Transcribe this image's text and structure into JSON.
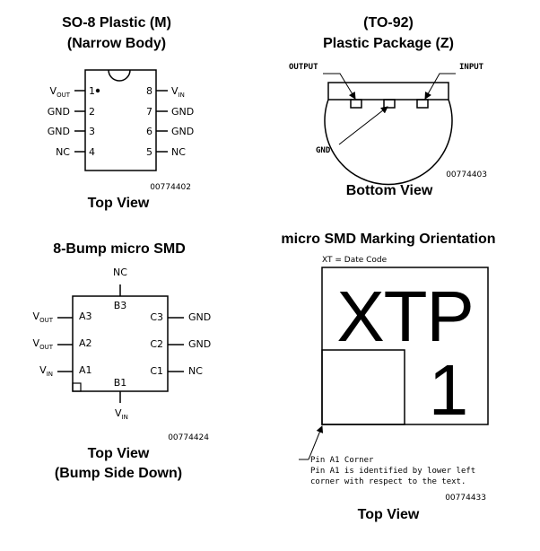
{
  "so8": {
    "title_line1": "SO-8 Plastic (M)",
    "title_line2": "(Narrow Body)",
    "left_pins": [
      {
        "base": "V",
        "sub": "OUT",
        "num": "1"
      },
      {
        "base": "GND",
        "sub": "",
        "num": "2"
      },
      {
        "base": "GND",
        "sub": "",
        "num": "3"
      },
      {
        "base": "NC",
        "sub": "",
        "num": "4"
      }
    ],
    "right_pins": [
      {
        "num": "8",
        "base": "V",
        "sub": "IN"
      },
      {
        "num": "7",
        "base": "GND",
        "sub": ""
      },
      {
        "num": "6",
        "base": "GND",
        "sub": ""
      },
      {
        "num": "5",
        "base": "NC",
        "sub": ""
      }
    ],
    "code": "00774402",
    "view": "Top View"
  },
  "to92": {
    "title_line1": "(TO-92)",
    "title_line2": "Plastic Package (Z)",
    "output_label": "OUTPUT",
    "input_label": "INPUT",
    "gnd_label": "GND",
    "code": "00774403",
    "view": "Bottom View"
  },
  "microsmd": {
    "title": "8-Bump micro SMD",
    "top_label": "NC",
    "top_bump": "B3",
    "bottom_bump": "B1",
    "bottom_label": {
      "base": "V",
      "sub": "IN"
    },
    "left_pins": [
      {
        "base": "V",
        "sub": "OUT",
        "bump": "A3"
      },
      {
        "base": "V",
        "sub": "OUT",
        "bump": "A2"
      },
      {
        "base": "V",
        "sub": "IN",
        "bump": "A1"
      }
    ],
    "right_pins": [
      {
        "bump": "C3",
        "label": "GND"
      },
      {
        "bump": "C2",
        "label": "GND"
      },
      {
        "bump": "C1",
        "label": "NC"
      }
    ],
    "code": "00774424",
    "view_line1": "Top View",
    "view_line2": "(Bump Side Down)"
  },
  "marking": {
    "title": "micro SMD Marking Orientation",
    "date_code": "XT = Date Code",
    "letters": [
      "X",
      "T",
      "P"
    ],
    "digit": "1",
    "note_line1": "Pin A1 Corner",
    "note_line2": "Pin A1 is identified by lower left",
    "note_line3": "corner with respect to the text.",
    "code": "00774433",
    "view": "Top View"
  }
}
